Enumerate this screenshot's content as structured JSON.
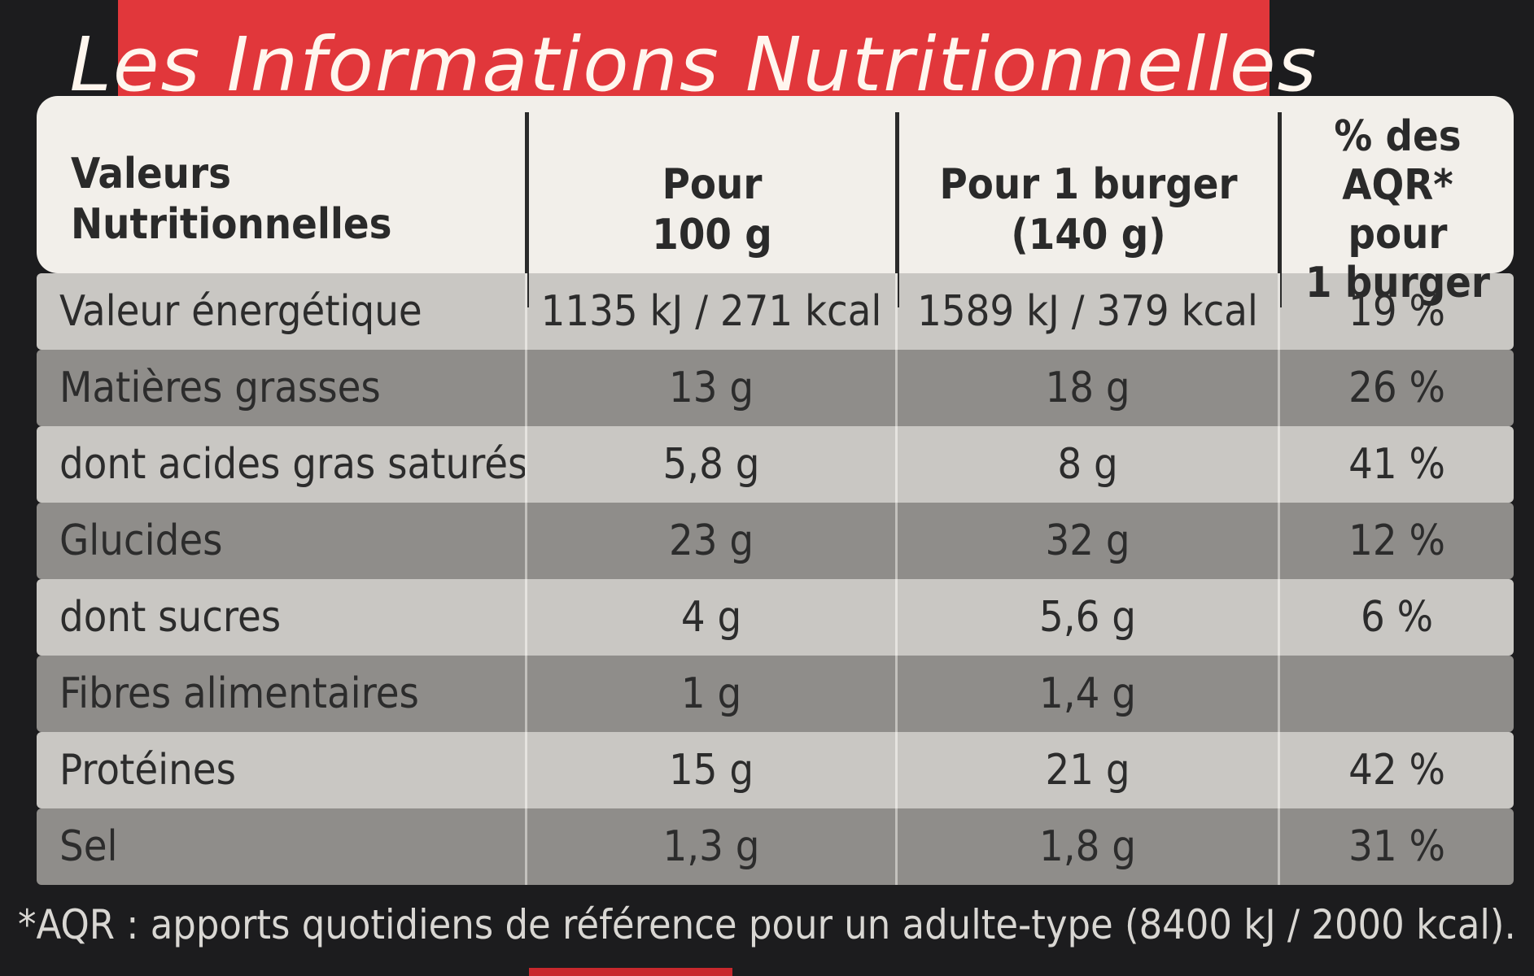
{
  "banner": {
    "title": "Les Informations Nutritionnelles"
  },
  "header": {
    "col1": [
      "Valeurs",
      "Nutritionnelles"
    ],
    "col2": [
      "Pour",
      "100 g"
    ],
    "col3": [
      "Pour 1 burger",
      "(140 g)"
    ],
    "col4": [
      "% des AQR*",
      "pour",
      "1 burger"
    ]
  },
  "rows": [
    {
      "label": "Valeur énergétique",
      "per100": "1135 kJ / 271 kcal",
      "perBurger": "1589 kJ / 379 kcal",
      "aqr": "19 %"
    },
    {
      "label": "Matières grasses",
      "per100": "13 g",
      "perBurger": "18 g",
      "aqr": "26 %"
    },
    {
      "label": "dont acides gras saturés",
      "per100": "5,8 g",
      "perBurger": "8 g",
      "aqr": "41 %"
    },
    {
      "label": "Glucides",
      "per100": "23 g",
      "perBurger": "32 g",
      "aqr": "12 %"
    },
    {
      "label": "dont sucres",
      "per100": "4 g",
      "perBurger": "5,6 g",
      "aqr": "6 %"
    },
    {
      "label": "Fibres alimentaires",
      "per100": "1 g",
      "perBurger": "1,4 g",
      "aqr": ""
    },
    {
      "label": "Protéines",
      "per100": "15 g",
      "perBurger": "21 g",
      "aqr": "42 %"
    },
    {
      "label": "Sel",
      "per100": "1,3 g",
      "perBurger": "1,8 g",
      "aqr": "31 %"
    }
  ],
  "footnote": "*AQR : apports quotidiens de référence pour un adulte-type (8400 kJ / 2000 kcal)."
}
